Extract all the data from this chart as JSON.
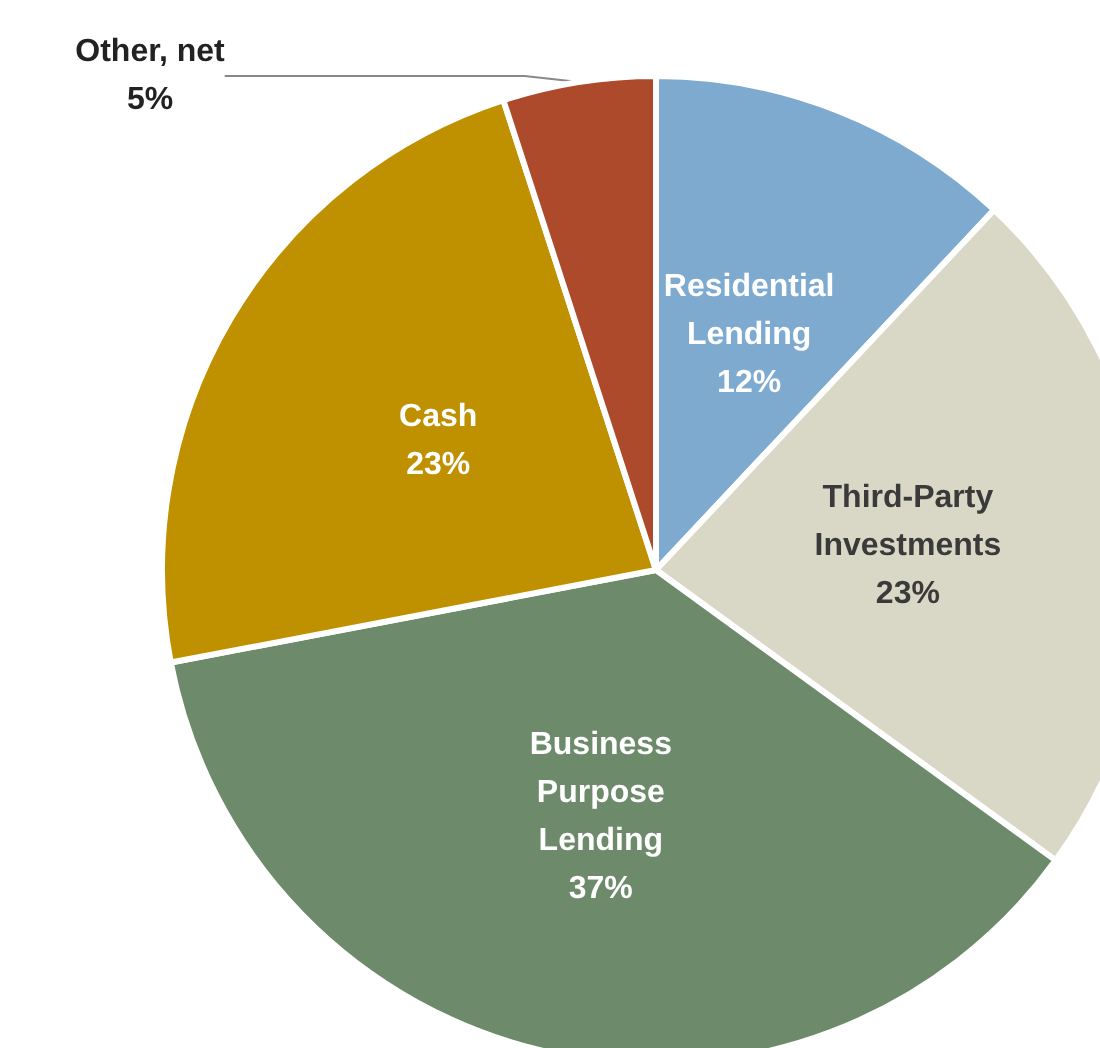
{
  "chart_data": {
    "type": "pie",
    "categories": [
      "Residential Lending",
      "Third-Party Investments",
      "Business Purpose Lending",
      "Cash",
      "Other, net"
    ],
    "values": [
      12,
      23,
      37,
      23,
      5
    ],
    "value_labels": [
      "12%",
      "23%",
      "37%",
      "23%",
      "5%"
    ],
    "colors": [
      "#7eaad0",
      "#d9d8c6",
      "#6d8a6b",
      "#bf9000",
      "#ad4a2b"
    ],
    "legend": false
  }
}
